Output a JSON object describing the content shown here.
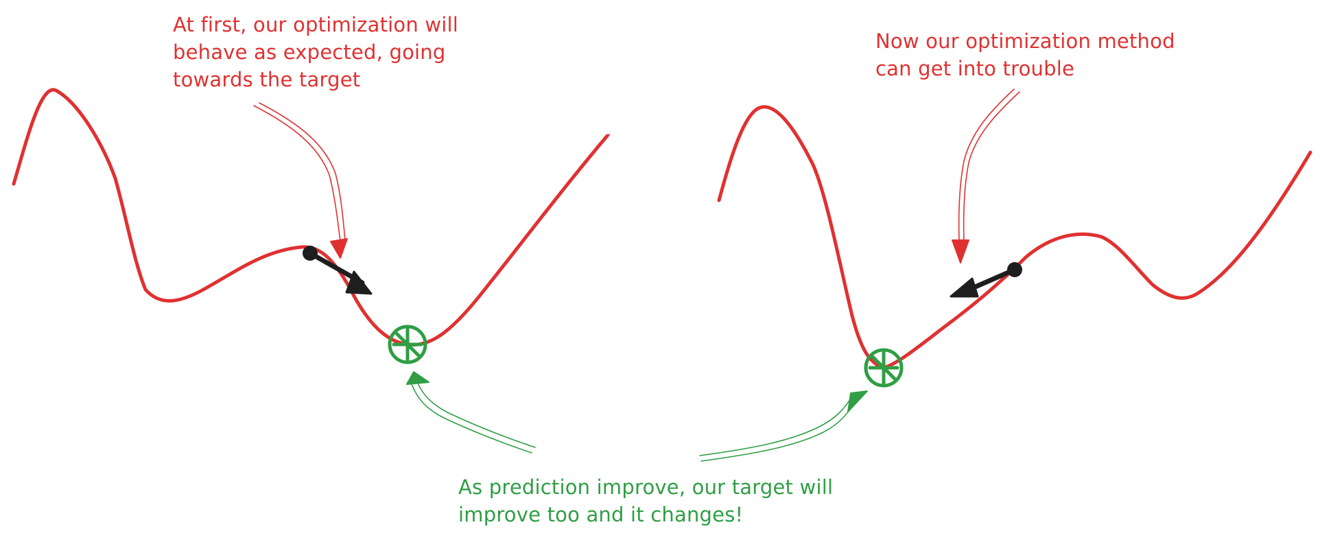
{
  "annotations": {
    "left": {
      "lines": [
        "At first, our optimization will",
        "behave as expected, going",
        "towards the target"
      ],
      "color": "#e03131"
    },
    "right": {
      "lines": [
        "Now our optimization method",
        "can get into trouble"
      ],
      "color": "#e03131"
    },
    "bottom": {
      "lines": [
        "As prediction improve, our target will",
        "improve too and it changes!"
      ],
      "color": "#2f9e44"
    }
  },
  "colors": {
    "curve": "#e03131",
    "target": "#2f9e44",
    "gradient_step": "#1e1e1e"
  },
  "icons": {
    "target_marker": "circled-x-icon",
    "gradient_arrow": "arrow-icon"
  }
}
